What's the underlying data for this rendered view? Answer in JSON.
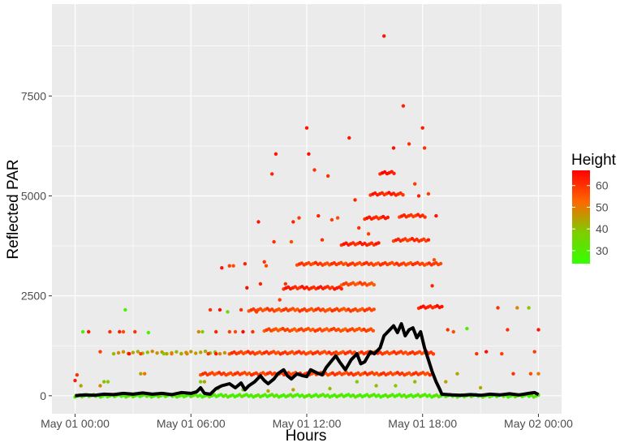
{
  "chart_data": {
    "type": "scatter",
    "title": "",
    "xlabel": "Hours",
    "ylabel": "Reflected PAR",
    "x_tick_labels": [
      "May 01 00:00",
      "May 01 06:00",
      "May 01 12:00",
      "May 01 18:00",
      "May 02 00:00"
    ],
    "y_tick_labels": [
      "0",
      "2500",
      "5000",
      "7500"
    ],
    "y_ticks": [
      0,
      2500,
      5000,
      7500
    ],
    "x_ticks_hours": [
      0,
      6,
      12,
      18,
      24
    ],
    "x_range_hours": [
      -1.2,
      25.2
    ],
    "ylim": [
      -450,
      9800
    ],
    "grid": true,
    "theme": "ggplot2 gray background",
    "legend": {
      "title": "Height",
      "labels": [
        "60",
        "50",
        "40",
        "30"
      ],
      "values": [
        60,
        50,
        40,
        30
      ],
      "range": [
        24,
        67
      ],
      "colors": [
        "#ff0000",
        "#ff6600",
        "#80cc00",
        "#33ff00"
      ],
      "placement": "right"
    },
    "mean_line": {
      "color": "#000000",
      "points": [
        [
          0.0,
          0
        ],
        [
          0.5,
          20
        ],
        [
          1.0,
          10
        ],
        [
          1.5,
          40
        ],
        [
          2.0,
          30
        ],
        [
          2.5,
          60
        ],
        [
          3.0,
          40
        ],
        [
          3.5,
          70
        ],
        [
          4.0,
          40
        ],
        [
          4.5,
          60
        ],
        [
          5.0,
          30
        ],
        [
          5.5,
          80
        ],
        [
          6.0,
          60
        ],
        [
          6.3,
          100
        ],
        [
          6.5,
          200
        ],
        [
          6.7,
          60
        ],
        [
          7.0,
          40
        ],
        [
          7.3,
          180
        ],
        [
          7.6,
          250
        ],
        [
          8.0,
          300
        ],
        [
          8.3,
          200
        ],
        [
          8.6,
          320
        ],
        [
          8.8,
          150
        ],
        [
          9.0,
          250
        ],
        [
          9.3,
          350
        ],
        [
          9.6,
          500
        ],
        [
          9.8,
          380
        ],
        [
          10.0,
          300
        ],
        [
          10.3,
          420
        ],
        [
          10.5,
          550
        ],
        [
          10.8,
          650
        ],
        [
          11.0,
          500
        ],
        [
          11.2,
          420
        ],
        [
          11.5,
          550
        ],
        [
          11.8,
          500
        ],
        [
          12.0,
          480
        ],
        [
          12.2,
          650
        ],
        [
          12.5,
          580
        ],
        [
          12.8,
          520
        ],
        [
          13.0,
          700
        ],
        [
          13.2,
          820
        ],
        [
          13.5,
          1000
        ],
        [
          13.7,
          850
        ],
        [
          14.0,
          650
        ],
        [
          14.3,
          900
        ],
        [
          14.6,
          1050
        ],
        [
          14.8,
          800
        ],
        [
          15.0,
          850
        ],
        [
          15.3,
          1100
        ],
        [
          15.5,
          1050
        ],
        [
          15.8,
          1200
        ],
        [
          16.0,
          1500
        ],
        [
          16.3,
          1650
        ],
        [
          16.5,
          1750
        ],
        [
          16.7,
          1580
        ],
        [
          16.9,
          1800
        ],
        [
          17.1,
          1500
        ],
        [
          17.3,
          1650
        ],
        [
          17.5,
          1700
        ],
        [
          17.7,
          1450
        ],
        [
          17.9,
          1600
        ],
        [
          18.1,
          1200
        ],
        [
          18.3,
          900
        ],
        [
          18.5,
          600
        ],
        [
          18.7,
          350
        ],
        [
          18.9,
          150
        ],
        [
          19.0,
          40
        ],
        [
          19.5,
          20
        ],
        [
          20.0,
          10
        ],
        [
          20.5,
          30
        ],
        [
          21.0,
          10
        ],
        [
          21.5,
          40
        ],
        [
          22.0,
          20
        ],
        [
          22.5,
          50
        ],
        [
          23.0,
          20
        ],
        [
          23.5,
          60
        ],
        [
          23.8,
          80
        ],
        [
          24.0,
          30
        ]
      ]
    },
    "series": [
      {
        "kind": "band",
        "y": 0,
        "x_start": 0,
        "x_end": 24,
        "step": 0.12,
        "height": 30
      },
      {
        "kind": "band",
        "y": 550,
        "x_start": 6.5,
        "x_end": 18.5,
        "step": 0.12,
        "height": 58
      },
      {
        "kind": "band",
        "y": 1075,
        "x_start": 8.0,
        "x_end": 18.6,
        "step": 0.12,
        "height": 58
      },
      {
        "kind": "band",
        "y": 1080,
        "x_start": 2.0,
        "x_end": 7.8,
        "step": 0.25,
        "height": 45
      },
      {
        "kind": "band",
        "y": 1650,
        "x_start": 9.8,
        "x_end": 15.5,
        "step": 0.12,
        "height": 56
      },
      {
        "kind": "band",
        "y": 2150,
        "x_start": 9.0,
        "x_end": 15.5,
        "step": 0.12,
        "height": 57
      },
      {
        "kind": "band",
        "y": 2220,
        "x_start": 17.8,
        "x_end": 19.0,
        "step": 0.12,
        "height": 63
      },
      {
        "kind": "band",
        "y": 2700,
        "x_start": 10.8,
        "x_end": 13.8,
        "step": 0.12,
        "height": 62
      },
      {
        "kind": "band",
        "y": 2800,
        "x_start": 13.8,
        "x_end": 15.5,
        "step": 0.12,
        "height": 56
      },
      {
        "kind": "band",
        "y": 3300,
        "x_start": 11.5,
        "x_end": 19.0,
        "step": 0.12,
        "height": 58
      },
      {
        "kind": "band",
        "y": 3800,
        "x_start": 13.8,
        "x_end": 15.8,
        "step": 0.12,
        "height": 62
      },
      {
        "kind": "band",
        "y": 3900,
        "x_start": 16.5,
        "x_end": 18.3,
        "step": 0.12,
        "height": 60
      },
      {
        "kind": "band",
        "y": 4450,
        "x_start": 15.0,
        "x_end": 16.3,
        "step": 0.12,
        "height": 62
      },
      {
        "kind": "band",
        "y": 4500,
        "x_start": 16.8,
        "x_end": 18.2,
        "step": 0.12,
        "height": 60
      },
      {
        "kind": "band",
        "y": 5050,
        "x_start": 15.3,
        "x_end": 17.0,
        "step": 0.12,
        "height": 62
      },
      {
        "kind": "band",
        "y": 5580,
        "x_start": 15.8,
        "x_end": 16.6,
        "step": 0.12,
        "height": 64
      },
      {
        "kind": "points",
        "points": [
          [
            0.0,
            380,
            63
          ],
          [
            0.1,
            520,
            60
          ],
          [
            0.3,
            250,
            45
          ],
          [
            0.4,
            1600,
            30
          ],
          [
            0.7,
            1600,
            64
          ],
          [
            1.3,
            250,
            48
          ],
          [
            1.3,
            1100,
            58
          ],
          [
            1.5,
            350,
            42
          ],
          [
            1.7,
            350,
            40
          ],
          [
            1.8,
            1600,
            60
          ],
          [
            2.3,
            1600,
            63
          ],
          [
            2.5,
            1600,
            56
          ],
          [
            2.6,
            2150,
            28
          ],
          [
            2.8,
            1050,
            65
          ],
          [
            3.1,
            1600,
            60
          ],
          [
            3.4,
            1050,
            58
          ],
          [
            3.4,
            550,
            45
          ],
          [
            3.6,
            550,
            50
          ],
          [
            3.8,
            1580,
            28
          ],
          [
            4.6,
            1050,
            40
          ],
          [
            5.0,
            1050,
            50
          ],
          [
            5.5,
            1050,
            45
          ],
          [
            5.8,
            1050,
            48
          ],
          [
            6.4,
            1600,
            48
          ],
          [
            6.6,
            1600,
            40
          ],
          [
            6.5,
            350,
            40
          ],
          [
            6.7,
            350,
            45
          ],
          [
            6.9,
            1050,
            60
          ],
          [
            7.3,
            1050,
            63
          ],
          [
            7.0,
            2150,
            60
          ],
          [
            7.3,
            1600,
            62
          ],
          [
            7.5,
            2150,
            65
          ],
          [
            7.6,
            3200,
            64
          ],
          [
            7.9,
            2100,
            35
          ],
          [
            8.0,
            3250,
            58
          ],
          [
            8.2,
            3250,
            56
          ],
          [
            8.0,
            1600,
            58
          ],
          [
            8.3,
            1600,
            56
          ],
          [
            8.6,
            2150,
            60
          ],
          [
            8.7,
            1600,
            66
          ],
          [
            8.8,
            3300,
            62
          ],
          [
            8.9,
            2700,
            65
          ],
          [
            9.2,
            1600,
            60
          ],
          [
            9.4,
            2100,
            58
          ],
          [
            9.5,
            4350,
            64
          ],
          [
            9.6,
            2800,
            62
          ],
          [
            9.8,
            3350,
            60
          ],
          [
            9.9,
            3250,
            56
          ],
          [
            10.2,
            5550,
            62
          ],
          [
            10.4,
            6050,
            64
          ],
          [
            10.3,
            3850,
            60
          ],
          [
            10.6,
            2400,
            58
          ],
          [
            10.9,
            2800,
            60
          ],
          [
            11.2,
            3850,
            56
          ],
          [
            11.3,
            4350,
            62
          ],
          [
            11.6,
            4450,
            58
          ],
          [
            12.0,
            6700,
            64
          ],
          [
            12.1,
            6050,
            65
          ],
          [
            12.4,
            5650,
            60
          ],
          [
            12.6,
            4500,
            62
          ],
          [
            12.8,
            3900,
            60
          ],
          [
            13.1,
            5500,
            60
          ],
          [
            13.3,
            4400,
            58
          ],
          [
            13.6,
            4450,
            56
          ],
          [
            14.2,
            6450,
            64
          ],
          [
            14.5,
            4900,
            62
          ],
          [
            14.7,
            4200,
            60
          ],
          [
            15.2,
            4050,
            58
          ],
          [
            16.0,
            9000,
            64
          ],
          [
            16.5,
            6200,
            65
          ],
          [
            17.0,
            7250,
            62
          ],
          [
            17.3,
            6300,
            60
          ],
          [
            17.6,
            5300,
            58
          ],
          [
            17.8,
            5000,
            62
          ],
          [
            18.0,
            6700,
            63
          ],
          [
            18.1,
            6200,
            60
          ],
          [
            18.3,
            5050,
            58
          ],
          [
            18.7,
            4500,
            64
          ],
          [
            18.6,
            3400,
            56
          ],
          [
            18.5,
            2750,
            62
          ],
          [
            19.3,
            1650,
            60
          ],
          [
            19.8,
            550,
            45
          ],
          [
            19.6,
            1600,
            56
          ],
          [
            20.3,
            1680,
            30
          ],
          [
            20.8,
            1050,
            60
          ],
          [
            21.3,
            1100,
            65
          ],
          [
            21.9,
            2200,
            60
          ],
          [
            22.1,
            1050,
            58
          ],
          [
            22.4,
            1650,
            60
          ],
          [
            22.9,
            2200,
            48
          ],
          [
            23.5,
            2200,
            40
          ],
          [
            23.8,
            1100,
            58
          ],
          [
            24.0,
            1650,
            64
          ],
          [
            24.0,
            550,
            50
          ],
          [
            23.6,
            550,
            56
          ],
          [
            22.7,
            550,
            60
          ],
          [
            19.2,
            350,
            45
          ],
          [
            17.6,
            350,
            42
          ],
          [
            16.6,
            250,
            40
          ],
          [
            14.6,
            350,
            40
          ],
          [
            15.6,
            250,
            42
          ],
          [
            13.2,
            180,
            42
          ],
          [
            11.3,
            150,
            45
          ],
          [
            10.0,
            120,
            45
          ],
          [
            8.7,
            150,
            40
          ],
          [
            7.4,
            180,
            42
          ],
          [
            21.0,
            200,
            44
          ]
        ]
      }
    ]
  }
}
